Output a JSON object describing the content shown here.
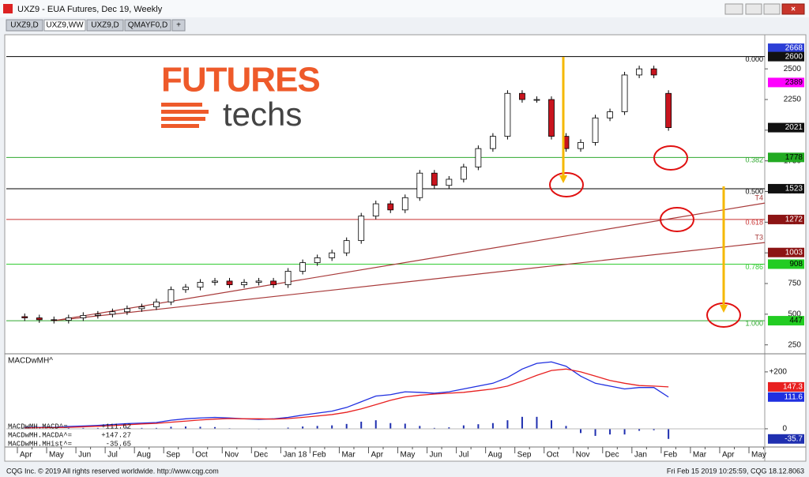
{
  "window": {
    "title": "UXZ9 - EUA Futures, Dec 19, Weekly",
    "tabs": [
      "UXZ9,D",
      "UXZ9,WW",
      "UXZ9,D",
      "QMAYF0,D",
      "+"
    ]
  },
  "logo": {
    "line1": "FUTURES",
    "line2": "techs"
  },
  "chart_data": [
    {
      "type": "candlestick",
      "categories": [
        "Apr",
        null,
        "May",
        null,
        "Jun",
        null,
        "Jul",
        null,
        "Aug",
        null,
        "Sep",
        null,
        "Oct",
        null,
        "Nov",
        null,
        "Dec",
        null,
        "Jan 18",
        null,
        "Feb",
        null,
        "Mar",
        null,
        "Apr",
        null,
        "May",
        null,
        "Jun",
        null,
        "Jul",
        null,
        "Aug",
        null,
        "Sep",
        null,
        "Oct",
        null,
        "Nov",
        null,
        "Dec",
        null,
        "Jan",
        null,
        "Feb",
        null,
        "Mar",
        null,
        "Apr",
        null,
        "May",
        null
      ],
      "open": [
        480,
        470,
        455,
        450,
        470,
        490,
        500,
        520,
        545,
        560,
        600,
        700,
        720,
        760,
        770,
        740,
        760,
        770,
        740,
        850,
        920,
        960,
        1000,
        1100,
        1300,
        1400,
        1350,
        1450,
        1650,
        1550,
        1600,
        1700,
        1850,
        1950,
        2300,
        2250,
        2250,
        1950,
        1850,
        1900,
        2100,
        2150,
        2450,
        2500,
        2300,
        null,
        null,
        null,
        null,
        null,
        null,
        null
      ],
      "close": [
        470,
        455,
        450,
        470,
        490,
        500,
        520,
        545,
        560,
        600,
        700,
        720,
        760,
        770,
        740,
        760,
        770,
        740,
        850,
        920,
        960,
        1000,
        1100,
        1300,
        1400,
        1350,
        1450,
        1650,
        1550,
        1600,
        1700,
        1850,
        1950,
        2300,
        2250,
        2250,
        1950,
        1850,
        1900,
        2100,
        2150,
        2450,
        2500,
        2450,
        2021,
        null,
        null,
        null,
        null,
        null,
        null,
        null
      ],
      "up_color": "#ffffff",
      "down_color": "#c8141e",
      "ylim": [
        190,
        2778
      ],
      "yticks": [
        250,
        500,
        750,
        1000,
        1250,
        1500,
        1750,
        2000,
        2250,
        2500
      ],
      "fib_levels": [
        {
          "label": "0.000",
          "value": 2600,
          "color": "#000000"
        },
        {
          "label": "0.382",
          "value": 1778,
          "color": "#2fa82f"
        },
        {
          "label": "0.500",
          "value": 1523,
          "color": "#000000"
        },
        {
          "label": "0.618",
          "value": 1272,
          "color": "#c83232"
        },
        {
          "label": "0.786",
          "value": 908,
          "color": "#33cc33"
        },
        {
          "label": "1.000",
          "value": 447,
          "color": "#2fa82f"
        }
      ],
      "trendlines": [
        {
          "label": "T4",
          "start": 447,
          "end": 1406,
          "color": "#a83a3a"
        },
        {
          "label": "T3",
          "start": 447,
          "end": 1084,
          "color": "#a83a3a"
        }
      ],
      "price_labels": [
        {
          "value": 2668,
          "color": "#2c3ed6"
        },
        {
          "value": 2600,
          "color": "#111111"
        },
        {
          "value": 2389,
          "color": "#ff00ff"
        },
        {
          "value": 2021,
          "color": "#111111"
        },
        {
          "value": 1778,
          "color": "#22aa22"
        },
        {
          "value": 1523,
          "color": "#111111"
        },
        {
          "value": 1272,
          "color": "#8c1414"
        },
        {
          "value": 1003,
          "color": "#8c1414"
        },
        {
          "value": 908,
          "color": "#22cc22"
        },
        {
          "value": 447,
          "color": "#22cc22"
        }
      ]
    },
    {
      "type": "macd",
      "title": "MACDwMH^",
      "series": [
        {
          "name": "MACDwMH.MACD^=",
          "color": "#1f2fe0",
          "value_label": "+111.62",
          "last_label": "111.6",
          "values": [
            5,
            5,
            5,
            8,
            10,
            12,
            15,
            18,
            20,
            22,
            30,
            35,
            38,
            40,
            38,
            35,
            33,
            35,
            40,
            48,
            55,
            62,
            75,
            95,
            115,
            120,
            130,
            128,
            125,
            130,
            140,
            150,
            160,
            180,
            210,
            230,
            235,
            220,
            185,
            160,
            150,
            140,
            145,
            145,
            111.62,
            null,
            null,
            null,
            null,
            null,
            null,
            null
          ]
        },
        {
          "name": "MACDwMH.MACDA^=",
          "color": "#e82020",
          "value_label": "+147.27",
          "last_label": "147.3",
          "values": [
            3,
            4,
            4,
            5,
            7,
            9,
            11,
            14,
            17,
            19,
            23,
            27,
            31,
            34,
            36,
            35,
            35,
            34,
            36,
            40,
            45,
            50,
            58,
            70,
            85,
            100,
            112,
            118,
            122,
            125,
            128,
            134,
            140,
            150,
            168,
            188,
            205,
            210,
            200,
            185,
            170,
            160,
            152,
            150,
            147.27,
            null,
            null,
            null,
            null,
            null,
            null,
            null
          ]
        },
        {
          "name": "MACDwMH.MHist^=",
          "color": "#1f2fb0",
          "value_label": "-35.65",
          "last_label": "-35.7",
          "values": [
            2,
            1,
            1,
            3,
            3,
            3,
            4,
            4,
            3,
            3,
            7,
            8,
            7,
            6,
            2,
            0,
            -2,
            1,
            4,
            8,
            10,
            12,
            17,
            25,
            30,
            20,
            18,
            10,
            3,
            5,
            12,
            16,
            20,
            30,
            42,
            42,
            30,
            10,
            -15,
            -25,
            -20,
            -20,
            -7,
            -5,
            -35.65,
            null,
            null,
            null,
            null,
            null,
            null,
            null
          ]
        }
      ],
      "ylim": [
        -64,
        258
      ],
      "yticks": [
        {
          "value": 200,
          "label": "+200"
        },
        0
      ]
    }
  ],
  "footer": {
    "left": "CQG Inc. © 2019 All rights reserved worldwide. http://www.cqg.com",
    "right": "Fri Feb 15 2019 10:25:59, CQG 18.12.8063"
  }
}
